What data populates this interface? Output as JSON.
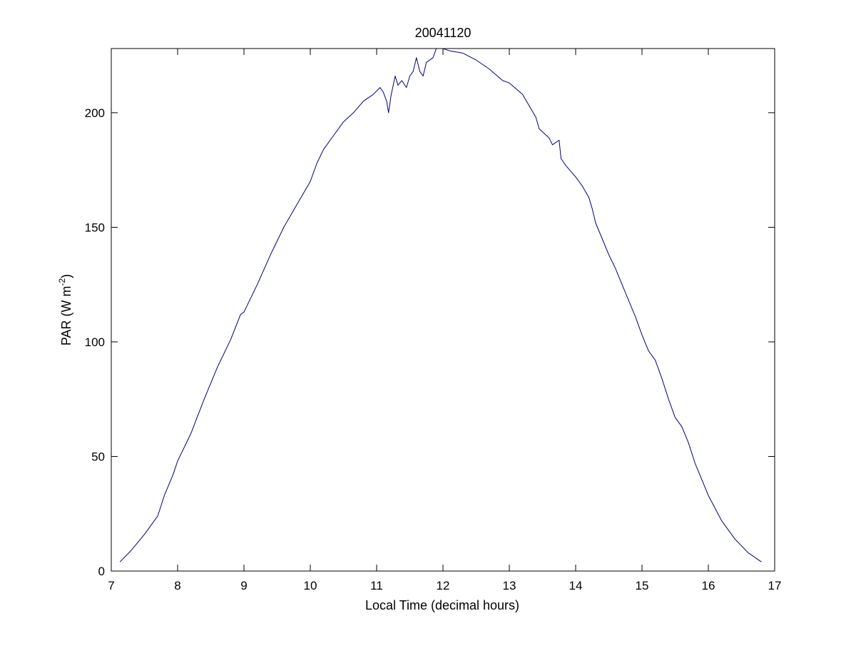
{
  "chart_data": {
    "type": "line",
    "title": "20041120",
    "xlabel": "Local Time (decimal hours)",
    "ylabel": {
      "main": "PAR (W m",
      "superscript": "-2",
      "suffix": ")"
    },
    "xlim": [
      7,
      17
    ],
    "ylim": [
      0,
      228
    ],
    "x_ticks": [
      7,
      8,
      9,
      10,
      11,
      12,
      13,
      14,
      15,
      16,
      17
    ],
    "y_ticks": [
      0,
      50,
      100,
      150,
      200
    ],
    "grid": false,
    "legend": "none",
    "series": [
      {
        "color": "#00007f",
        "points": [
          [
            7.13,
            4
          ],
          [
            7.3,
            9
          ],
          [
            7.5,
            16
          ],
          [
            7.7,
            24
          ],
          [
            7.8,
            33
          ],
          [
            7.93,
            42
          ],
          [
            8.0,
            48
          ],
          [
            8.2,
            60
          ],
          [
            8.4,
            75
          ],
          [
            8.6,
            89
          ],
          [
            8.8,
            101
          ],
          [
            8.95,
            112
          ],
          [
            9.0,
            113
          ],
          [
            9.2,
            125
          ],
          [
            9.4,
            138
          ],
          [
            9.6,
            150
          ],
          [
            9.8,
            160
          ],
          [
            10.0,
            170
          ],
          [
            10.1,
            178
          ],
          [
            10.2,
            184
          ],
          [
            10.35,
            190
          ],
          [
            10.5,
            196
          ],
          [
            10.65,
            200
          ],
          [
            10.8,
            205
          ],
          [
            10.95,
            208
          ],
          [
            11.05,
            211
          ],
          [
            11.1,
            209
          ],
          [
            11.15,
            205
          ],
          [
            11.18,
            200
          ],
          [
            11.22,
            208
          ],
          [
            11.28,
            216
          ],
          [
            11.32,
            212
          ],
          [
            11.38,
            214
          ],
          [
            11.45,
            211
          ],
          [
            11.5,
            216
          ],
          [
            11.55,
            218
          ],
          [
            11.6,
            224
          ],
          [
            11.65,
            218
          ],
          [
            11.7,
            216
          ],
          [
            11.75,
            222
          ],
          [
            11.85,
            224
          ],
          [
            11.9,
            228
          ],
          [
            12.0,
            228
          ],
          [
            12.1,
            227
          ],
          [
            12.3,
            226
          ],
          [
            12.5,
            223
          ],
          [
            12.7,
            219
          ],
          [
            12.9,
            214
          ],
          [
            13.0,
            213
          ],
          [
            13.2,
            208
          ],
          [
            13.3,
            203
          ],
          [
            13.4,
            198
          ],
          [
            13.45,
            193
          ],
          [
            13.6,
            189
          ],
          [
            13.65,
            186
          ],
          [
            13.75,
            188
          ],
          [
            13.78,
            180
          ],
          [
            13.85,
            177
          ],
          [
            14.0,
            172
          ],
          [
            14.1,
            168
          ],
          [
            14.2,
            163
          ],
          [
            14.25,
            158
          ],
          [
            14.3,
            152
          ],
          [
            14.4,
            145
          ],
          [
            14.5,
            138
          ],
          [
            14.6,
            132
          ],
          [
            14.7,
            125
          ],
          [
            14.8,
            118
          ],
          [
            14.9,
            111
          ],
          [
            15.0,
            103
          ],
          [
            15.1,
            96
          ],
          [
            15.2,
            92
          ],
          [
            15.3,
            84
          ],
          [
            15.4,
            75
          ],
          [
            15.5,
            67
          ],
          [
            15.6,
            63
          ],
          [
            15.7,
            56
          ],
          [
            15.8,
            47
          ],
          [
            15.9,
            40
          ],
          [
            16.0,
            33
          ],
          [
            16.2,
            22
          ],
          [
            16.4,
            14
          ],
          [
            16.6,
            8
          ],
          [
            16.8,
            4
          ]
        ]
      }
    ]
  }
}
